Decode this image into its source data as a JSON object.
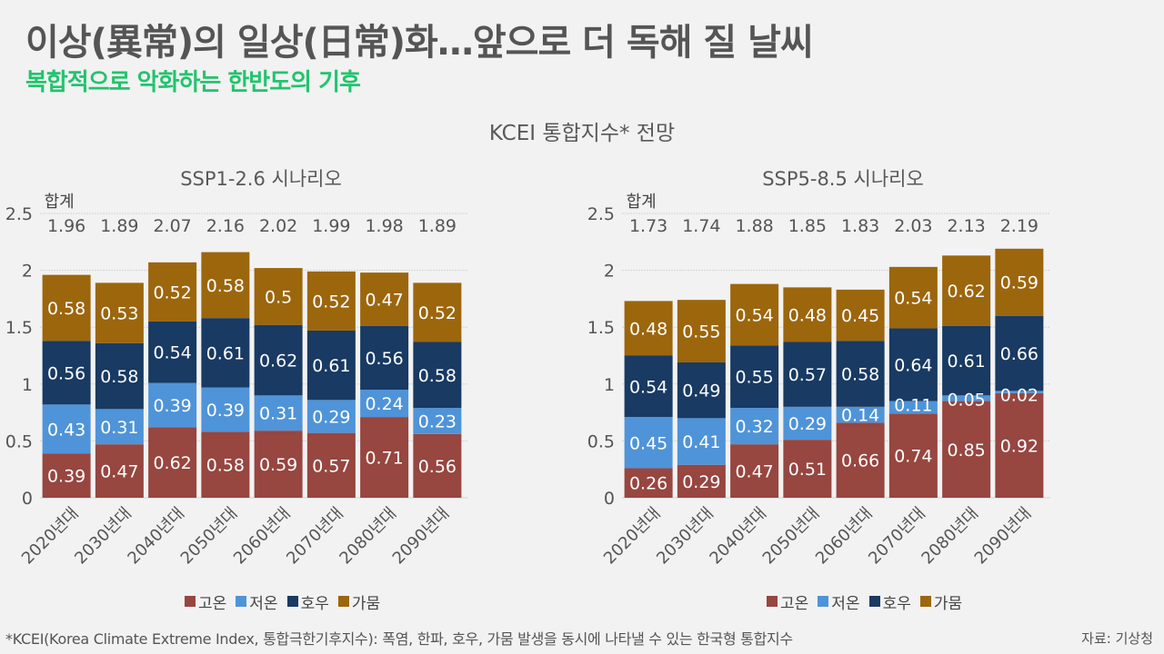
{
  "header": {
    "title": "이상(異常)의 일상(日常)화…앞으로 더 독해 질 날씨",
    "subtitle": "복합적으로 악화하는 한반도의 기후",
    "chart_main_title": "KCEI 통합지수* 전망"
  },
  "colors": {
    "고온": "#974640",
    "저온": "#4f94d8",
    "호우": "#183a63",
    "가뭄": "#9c660d",
    "title": "#555555",
    "subtitle": "#22c46e"
  },
  "footnote": "*KCEI(Korea Climate Extreme Index, 통합극한기후지수): 폭염, 한파, 호우, 가뭄 발생을 동시에 나타낼 수 있는 한국형 통합지수",
  "source": "자료: 기상청",
  "chart_data": [
    {
      "type": "bar",
      "stacked": true,
      "title": "SSP1-2.6 시나리오",
      "total_label": "합계",
      "categories": [
        "2020년대",
        "2030년대",
        "2040년대",
        "2050년대",
        "2060년대",
        "2070년대",
        "2080년대",
        "2090년대"
      ],
      "totals": [
        "1.96",
        "1.89",
        "2.07",
        "2.16",
        "2.02",
        "1.99",
        "1.98",
        "1.89"
      ],
      "series": [
        {
          "name": "고온",
          "values": [
            0.39,
            0.47,
            0.62,
            0.58,
            0.59,
            0.57,
            0.71,
            0.56
          ]
        },
        {
          "name": "저온",
          "values": [
            0.43,
            0.31,
            0.39,
            0.39,
            0.31,
            0.29,
            0.24,
            0.23
          ]
        },
        {
          "name": "호우",
          "values": [
            0.56,
            0.58,
            0.54,
            0.61,
            0.62,
            0.61,
            0.56,
            0.58
          ]
        },
        {
          "name": "가뭄",
          "values": [
            0.58,
            0.53,
            0.52,
            0.58,
            0.5,
            0.52,
            0.47,
            0.52
          ]
        }
      ],
      "labels": [
        [
          "0.39",
          "0.47",
          "0.62",
          "0.58",
          "0.59",
          "0.57",
          "0.71",
          "0.56"
        ],
        [
          "0.43",
          "0.31",
          "0.39",
          "0.39",
          "0.31",
          "0.29",
          "0.24",
          "0.23"
        ],
        [
          "0.56",
          "0.58",
          "0.54",
          "0.61",
          "0.62",
          "0.61",
          "0.56",
          "0.58"
        ],
        [
          "0.58",
          "0.53",
          "0.52",
          "0.58",
          "0.5",
          "0.52",
          "0.47",
          "0.52"
        ]
      ],
      "yticks": [
        "0",
        "0.5",
        "1",
        "1.5",
        "2",
        "2.5"
      ],
      "ylim": [
        0,
        2.5
      ],
      "grid": true,
      "legend": "bottom-center"
    },
    {
      "type": "bar",
      "stacked": true,
      "title": "SSP5-8.5 시나리오",
      "total_label": "합계",
      "categories": [
        "2020년대",
        "2030년대",
        "2040년대",
        "2050년대",
        "2060년대",
        "2070년대",
        "2080년대",
        "2090년대"
      ],
      "totals": [
        "1.73",
        "1.74",
        "1.88",
        "1.85",
        "1.83",
        "2.03",
        "2.13",
        "2.19"
      ],
      "series": [
        {
          "name": "고온",
          "values": [
            0.26,
            0.29,
            0.47,
            0.51,
            0.66,
            0.74,
            0.85,
            0.92
          ]
        },
        {
          "name": "저온",
          "values": [
            0.45,
            0.41,
            0.32,
            0.29,
            0.14,
            0.11,
            0.05,
            0.02
          ]
        },
        {
          "name": "호우",
          "values": [
            0.54,
            0.49,
            0.55,
            0.57,
            0.58,
            0.64,
            0.61,
            0.66
          ]
        },
        {
          "name": "가뭄",
          "values": [
            0.48,
            0.55,
            0.54,
            0.48,
            0.45,
            0.54,
            0.62,
            0.59
          ]
        }
      ],
      "labels": [
        [
          "0.26",
          "0.29",
          "0.47",
          "0.51",
          "0.66",
          "0.74",
          "0.85",
          "0.92"
        ],
        [
          "0.45",
          "0.41",
          "0.32",
          "0.29",
          "0.14",
          "0.11",
          "0.05",
          "0.02"
        ],
        [
          "0.54",
          "0.49",
          "0.55",
          "0.57",
          "0.58",
          "0.64",
          "0.61",
          "0.66"
        ],
        [
          "0.48",
          "0.55",
          "0.54",
          "0.48",
          "0.45",
          "0.54",
          "0.62",
          "0.59"
        ]
      ],
      "yticks": [
        "0",
        "0.5",
        "1",
        "1.5",
        "2",
        "2.5"
      ],
      "ylim": [
        0,
        2.5
      ],
      "grid": true,
      "legend": "bottom-center"
    }
  ]
}
